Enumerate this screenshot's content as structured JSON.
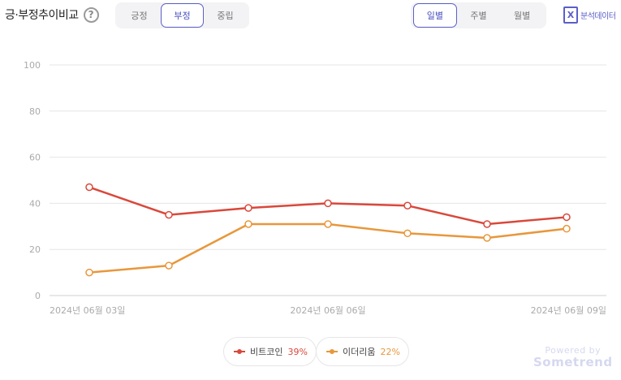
{
  "header": {
    "title": "긍·부정추이비교",
    "help_glyph": "?",
    "sentiment_tabs": [
      {
        "label": "긍정",
        "active": false
      },
      {
        "label": "부정",
        "active": true
      },
      {
        "label": "중립",
        "active": false
      }
    ],
    "period_tabs": [
      {
        "label": "일별",
        "active": true
      },
      {
        "label": "주별",
        "active": false
      },
      {
        "label": "월별",
        "active": false
      }
    ],
    "export": {
      "icon": "excel-icon",
      "glyph": "X",
      "label": "분석데이터"
    }
  },
  "chart_data": {
    "type": "line",
    "x": [
      "2024-06-03",
      "2024-06-04",
      "2024-06-05",
      "2024-06-06",
      "2024-06-07",
      "2024-06-08",
      "2024-06-09"
    ],
    "x_tick_labels": [
      {
        "index": 0,
        "label": "2024년 06월 03일"
      },
      {
        "index": 3,
        "label": "2024년 06월 06일"
      },
      {
        "index": 6,
        "label": "2024년 06월 09일"
      }
    ],
    "y_ticks": [
      0,
      20,
      40,
      60,
      80,
      100
    ],
    "ylim": [
      0,
      100
    ],
    "grid": true,
    "legend_position": "bottom-center",
    "series": [
      {
        "name": "비트코인",
        "color": "#d9483b",
        "values": [
          47,
          35,
          38,
          40,
          39,
          31,
          34
        ]
      },
      {
        "name": "이더리움",
        "color": "#e8973b",
        "values": [
          10,
          13,
          31,
          31,
          27,
          25,
          29
        ]
      }
    ]
  },
  "legend": [
    {
      "name": "비트코인",
      "percent": "39%",
      "color": "#d9483b"
    },
    {
      "name": "이더리움",
      "percent": "22%",
      "color": "#e8973b"
    }
  ],
  "brand": {
    "powered": "Powered by",
    "name": "Sometrend"
  }
}
